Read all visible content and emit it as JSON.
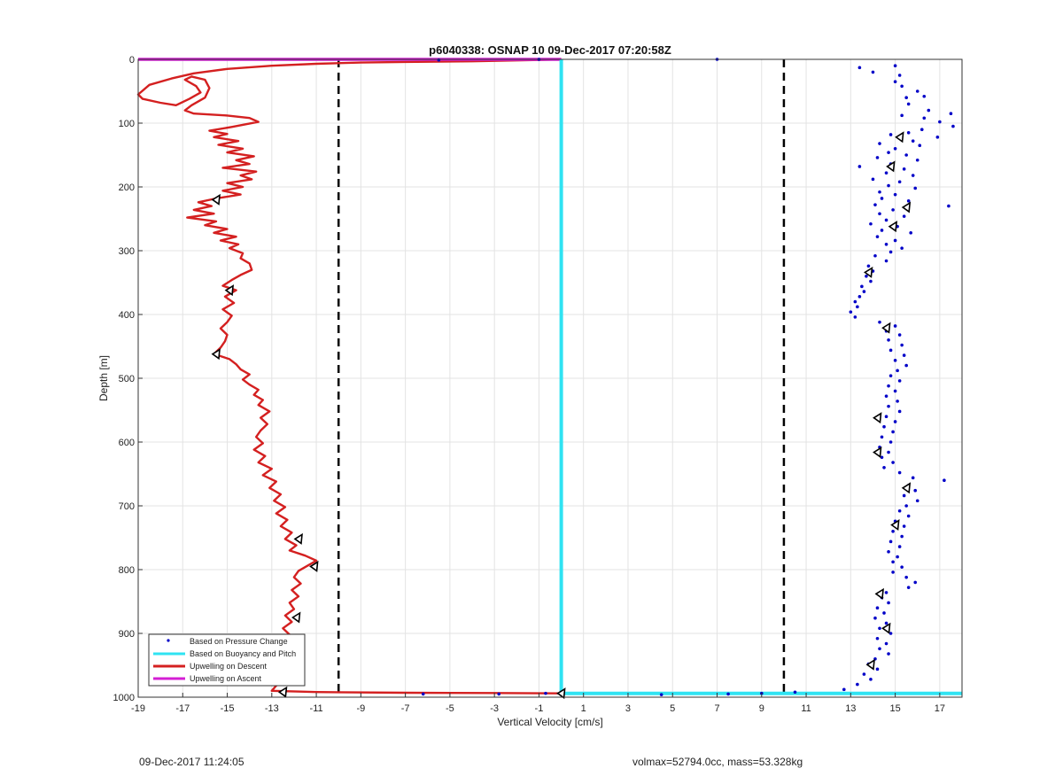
{
  "footer": {
    "timestamp": "09-Dec-2017 11:24:05",
    "volmax_mass": "volmax=52794.0cc, mass=53.328kg"
  },
  "chart_data": {
    "type": "line",
    "title": "p6040338: OSNAP 10 09-Dec-2017 07:20:58Z",
    "xlabel": "Vertical Velocity [cm/s]",
    "ylabel": "Depth [m]",
    "xlim": [
      -19,
      18
    ],
    "ylim": [
      0,
      1000
    ],
    "y_reversed": true,
    "grid": true,
    "xticks": [
      -19,
      -17,
      -15,
      -13,
      -11,
      -9,
      -7,
      -5,
      -3,
      -1,
      1,
      3,
      5,
      7,
      9,
      11,
      13,
      15,
      17
    ],
    "yticks": [
      0,
      100,
      200,
      300,
      400,
      500,
      600,
      700,
      800,
      900,
      1000
    ],
    "legend_position": "bottom-left",
    "legend": [
      "Based on Pressure Change",
      "Based on Buoyancy and Pitch",
      "Upwelling on Descent",
      "Upwelling on Ascent"
    ],
    "threshold_lines": [
      -10,
      10
    ],
    "colors": {
      "pressure": "#0000c8",
      "buoyancy": "#2fe3f2",
      "descent": "#d42020",
      "ascent": "#d41fd4",
      "threshold": "#000000",
      "grid": "#e3e3e3"
    },
    "series": [
      {
        "name": "Upwelling on Descent",
        "points": [
          [
            0.0,
            0
          ],
          [
            -1,
            1
          ],
          [
            -4,
            3
          ],
          [
            -7,
            4
          ],
          [
            -9,
            5
          ],
          [
            -11,
            7
          ],
          [
            -13,
            10
          ],
          [
            -15,
            15
          ],
          [
            -16.5,
            22
          ],
          [
            -17.5,
            30
          ],
          [
            -18.5,
            40
          ],
          [
            -19,
            55
          ],
          [
            -18.8,
            62
          ],
          [
            -18,
            68
          ],
          [
            -17.3,
            72
          ],
          [
            -16.7,
            62
          ],
          [
            -16.2,
            52
          ],
          [
            -16.4,
            42
          ],
          [
            -16.9,
            32
          ],
          [
            -16.6,
            27
          ],
          [
            -16.0,
            32
          ],
          [
            -15.8,
            45
          ],
          [
            -16.0,
            60
          ],
          [
            -16.6,
            72
          ],
          [
            -16.9,
            80
          ],
          [
            -16.5,
            85
          ],
          [
            -15.0,
            88
          ],
          [
            -14.0,
            92
          ],
          [
            -13.6,
            98
          ],
          [
            -14.8,
            106
          ],
          [
            -15.8,
            112
          ],
          [
            -15.0,
            117
          ],
          [
            -15.6,
            122
          ],
          [
            -14.5,
            128
          ],
          [
            -15.4,
            134
          ],
          [
            -14.3,
            140
          ],
          [
            -15.0,
            146
          ],
          [
            -13.8,
            152
          ],
          [
            -14.6,
            158
          ],
          [
            -14.0,
            164
          ],
          [
            -15.2,
            170
          ],
          [
            -13.7,
            176
          ],
          [
            -14.4,
            182
          ],
          [
            -13.9,
            188
          ],
          [
            -15.0,
            194
          ],
          [
            -14.3,
            200
          ],
          [
            -15.2,
            206
          ],
          [
            -14.4,
            212
          ],
          [
            -15.5,
            218
          ],
          [
            -16.3,
            224
          ],
          [
            -15.7,
            230
          ],
          [
            -16.5,
            236
          ],
          [
            -15.6,
            242
          ],
          [
            -16.8,
            248
          ],
          [
            -15.5,
            254
          ],
          [
            -16.0,
            260
          ],
          [
            -15.0,
            266
          ],
          [
            -15.6,
            272
          ],
          [
            -14.6,
            278
          ],
          [
            -15.3,
            284
          ],
          [
            -14.5,
            290
          ],
          [
            -14.9,
            296
          ],
          [
            -14.3,
            304
          ],
          [
            -14.4,
            312
          ],
          [
            -14.0,
            320
          ],
          [
            -13.9,
            330
          ],
          [
            -14.4,
            338
          ],
          [
            -14.8,
            346
          ],
          [
            -15.2,
            355
          ],
          [
            -14.6,
            362
          ],
          [
            -15.1,
            372
          ],
          [
            -14.7,
            382
          ],
          [
            -15.2,
            392
          ],
          [
            -14.8,
            402
          ],
          [
            -15.0,
            412
          ],
          [
            -15.3,
            422
          ],
          [
            -15.0,
            432
          ],
          [
            -15.1,
            442
          ],
          [
            -15.3,
            452
          ],
          [
            -15.6,
            462
          ],
          [
            -14.9,
            470
          ],
          [
            -14.6,
            478
          ],
          [
            -14.4,
            486
          ],
          [
            -14.0,
            494
          ],
          [
            -14.3,
            502
          ],
          [
            -14.0,
            510
          ],
          [
            -13.6,
            518
          ],
          [
            -13.8,
            526
          ],
          [
            -13.4,
            534
          ],
          [
            -13.6,
            542
          ],
          [
            -13.1,
            552
          ],
          [
            -13.5,
            562
          ],
          [
            -13.2,
            572
          ],
          [
            -13.5,
            582
          ],
          [
            -13.7,
            592
          ],
          [
            -13.4,
            602
          ],
          [
            -13.8,
            612
          ],
          [
            -13.3,
            622
          ],
          [
            -13.6,
            632
          ],
          [
            -13.0,
            642
          ],
          [
            -13.4,
            652
          ],
          [
            -12.8,
            662
          ],
          [
            -13.1,
            672
          ],
          [
            -12.6,
            682
          ],
          [
            -12.9,
            692
          ],
          [
            -12.4,
            702
          ],
          [
            -12.8,
            712
          ],
          [
            -12.3,
            722
          ],
          [
            -12.6,
            732
          ],
          [
            -12.1,
            742
          ],
          [
            -12.4,
            752
          ],
          [
            -11.9,
            762
          ],
          [
            -12.2,
            770
          ],
          [
            -11.5,
            778
          ],
          [
            -11.0,
            786
          ],
          [
            -11.4,
            794
          ],
          [
            -11.8,
            802
          ],
          [
            -12.0,
            812
          ],
          [
            -11.7,
            822
          ],
          [
            -12.1,
            832
          ],
          [
            -11.8,
            842
          ],
          [
            -12.2,
            852
          ],
          [
            -12.0,
            862
          ],
          [
            -12.4,
            872
          ],
          [
            -12.1,
            882
          ],
          [
            -12.5,
            892
          ],
          [
            -12.2,
            902
          ],
          [
            -12.6,
            912
          ],
          [
            -12.3,
            922
          ],
          [
            -12.2,
            932
          ],
          [
            -12.6,
            942
          ],
          [
            -12.3,
            952
          ],
          [
            -12.7,
            962
          ],
          [
            -12.4,
            972
          ],
          [
            -12.8,
            982
          ],
          [
            -13.0,
            990
          ],
          [
            -11,
            992
          ],
          [
            -7,
            993
          ],
          [
            -3,
            993.5
          ],
          [
            0,
            994
          ]
        ]
      },
      {
        "name": "Upwelling on Ascent",
        "points": [
          [
            -19,
            0
          ],
          [
            0,
            0
          ]
        ]
      },
      {
        "name": "Based on Buoyancy and Pitch",
        "points": [
          [
            0,
            0
          ],
          [
            0,
            994
          ],
          [
            18,
            994
          ]
        ]
      }
    ],
    "pressure_points": [
      [
        7,
        0
      ],
      [
        15,
        10
      ],
      [
        13.4,
        13
      ],
      [
        14.0,
        20
      ],
      [
        15.2,
        25
      ],
      [
        15.0,
        35
      ],
      [
        15.3,
        42
      ],
      [
        16.0,
        50
      ],
      [
        15.5,
        60
      ],
      [
        16.3,
        58
      ],
      [
        15.6,
        70
      ],
      [
        16.5,
        80
      ],
      [
        17.5,
        85
      ],
      [
        15.3,
        88
      ],
      [
        16.3,
        92
      ],
      [
        17.0,
        98
      ],
      [
        17.6,
        105
      ],
      [
        16.2,
        110
      ],
      [
        15.6,
        115
      ],
      [
        14.8,
        118
      ],
      [
        16.9,
        122
      ],
      [
        15.8,
        128
      ],
      [
        14.3,
        132
      ],
      [
        16.1,
        135
      ],
      [
        15.0,
        140
      ],
      [
        14.7,
        146
      ],
      [
        15.5,
        150
      ],
      [
        14.2,
        154
      ],
      [
        16.0,
        158
      ],
      [
        14.8,
        164
      ],
      [
        13.4,
        168
      ],
      [
        15.4,
        172
      ],
      [
        14.6,
        178
      ],
      [
        15.8,
        182
      ],
      [
        14.0,
        188
      ],
      [
        15.2,
        192
      ],
      [
        14.7,
        198
      ],
      [
        15.9,
        202
      ],
      [
        14.3,
        208
      ],
      [
        15.0,
        212
      ],
      [
        14.4,
        218
      ],
      [
        15.6,
        222
      ],
      [
        14.1,
        228
      ],
      [
        17.4,
        230
      ],
      [
        14.9,
        236
      ],
      [
        14.3,
        242
      ],
      [
        15.4,
        246
      ],
      [
        14.6,
        252
      ],
      [
        13.9,
        258
      ],
      [
        15.1,
        262
      ],
      [
        14.4,
        268
      ],
      [
        15.7,
        272
      ],
      [
        14.2,
        278
      ],
      [
        15.0,
        284
      ],
      [
        14.6,
        290
      ],
      [
        15.3,
        296
      ],
      [
        14.8,
        302
      ],
      [
        14.1,
        308
      ],
      [
        14.6,
        316
      ],
      [
        13.8,
        324
      ],
      [
        14.0,
        332
      ],
      [
        13.7,
        340
      ],
      [
        13.9,
        348
      ],
      [
        13.5,
        356
      ],
      [
        13.6,
        364
      ],
      [
        13.4,
        372
      ],
      [
        13.2,
        380
      ],
      [
        13.3,
        388
      ],
      [
        13.0,
        396
      ],
      [
        13.2,
        404
      ],
      [
        14.3,
        412
      ],
      [
        15.0,
        418
      ],
      [
        14.6,
        426
      ],
      [
        15.2,
        432
      ],
      [
        14.7,
        440
      ],
      [
        15.3,
        448
      ],
      [
        14.8,
        456
      ],
      [
        15.4,
        464
      ],
      [
        15.0,
        472
      ],
      [
        15.5,
        480
      ],
      [
        15.1,
        488
      ],
      [
        14.8,
        496
      ],
      [
        15.2,
        504
      ],
      [
        14.7,
        512
      ],
      [
        15.0,
        520
      ],
      [
        14.6,
        528
      ],
      [
        15.1,
        536
      ],
      [
        14.7,
        544
      ],
      [
        15.2,
        552
      ],
      [
        14.6,
        560
      ],
      [
        15.0,
        568
      ],
      [
        14.5,
        576
      ],
      [
        14.9,
        584
      ],
      [
        14.4,
        592
      ],
      [
        14.8,
        600
      ],
      [
        14.3,
        608
      ],
      [
        14.7,
        616
      ],
      [
        14.4,
        624
      ],
      [
        14.9,
        632
      ],
      [
        14.5,
        640
      ],
      [
        15.2,
        648
      ],
      [
        15.8,
        656
      ],
      [
        17.2,
        660
      ],
      [
        15.6,
        668
      ],
      [
        15.9,
        676
      ],
      [
        15.4,
        684
      ],
      [
        16.0,
        692
      ],
      [
        15.5,
        700
      ],
      [
        15.2,
        708
      ],
      [
        15.6,
        716
      ],
      [
        15.0,
        724
      ],
      [
        15.4,
        732
      ],
      [
        14.9,
        740
      ],
      [
        15.3,
        748
      ],
      [
        14.8,
        756
      ],
      [
        15.2,
        764
      ],
      [
        14.7,
        772
      ],
      [
        15.1,
        780
      ],
      [
        14.9,
        788
      ],
      [
        15.3,
        796
      ],
      [
        14.9,
        804
      ],
      [
        15.5,
        812
      ],
      [
        15.9,
        820
      ],
      [
        15.6,
        828
      ],
      [
        14.6,
        836
      ],
      [
        14.4,
        844
      ],
      [
        14.7,
        852
      ],
      [
        14.2,
        860
      ],
      [
        14.5,
        868
      ],
      [
        14.1,
        876
      ],
      [
        14.6,
        884
      ],
      [
        14.3,
        892
      ],
      [
        14.8,
        900
      ],
      [
        14.2,
        908
      ],
      [
        14.6,
        916
      ],
      [
        14.3,
        924
      ],
      [
        14.7,
        932
      ],
      [
        14.1,
        940
      ],
      [
        13.8,
        948
      ],
      [
        14.2,
        956
      ],
      [
        13.6,
        964
      ],
      [
        13.9,
        972
      ],
      [
        13.3,
        980
      ],
      [
        12.7,
        988
      ],
      [
        10.5,
        992
      ],
      [
        9.0,
        994
      ],
      [
        7.5,
        995
      ],
      [
        4.5,
        996
      ],
      [
        -0.7,
        994
      ],
      [
        -2.8,
        995
      ],
      [
        -6.2,
        995
      ],
      [
        -1,
        0
      ],
      [
        -5.5,
        1
      ]
    ],
    "pressure_point_labels_note": "",
    "markers": [
      [
        -15.5,
        220
      ],
      [
        -14.9,
        362
      ],
      [
        -15.5,
        462
      ],
      [
        -11.8,
        752
      ],
      [
        -11.1,
        795
      ],
      [
        -11.9,
        875
      ],
      [
        -12.1,
        920
      ],
      [
        -12.5,
        992
      ],
      [
        0.0,
        994
      ],
      [
        15.2,
        122
      ],
      [
        14.8,
        168
      ],
      [
        15.5,
        232
      ],
      [
        14.9,
        262
      ],
      [
        13.8,
        334
      ],
      [
        14.6,
        421
      ],
      [
        14.2,
        562
      ],
      [
        14.2,
        616
      ],
      [
        15.5,
        672
      ],
      [
        15.0,
        730
      ],
      [
        14.3,
        838
      ],
      [
        14.6,
        892
      ],
      [
        13.9,
        949
      ]
    ]
  }
}
